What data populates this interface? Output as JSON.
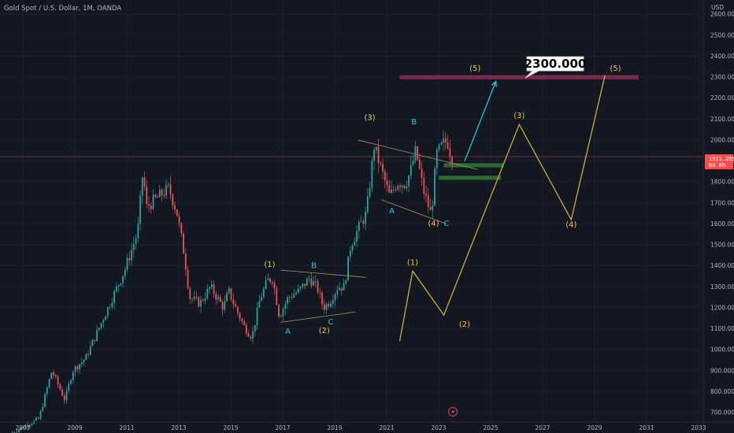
{
  "header": {
    "title": "Gold Spot / U.S. Dollar, 1M, OANDA",
    "currency": "USD"
  },
  "current_price": {
    "value": "1921.265",
    "countdown": "6d 8h",
    "price": 1921.265,
    "color": "#ef5350"
  },
  "callout": {
    "text": "2300.000"
  },
  "colors": {
    "background": "#131722",
    "up": "#26a69a",
    "down": "#ef5350",
    "wave_projection": "#c9b02e",
    "wave_label_yellow": "#f5c542",
    "wave_label_cyan": "#26c6da",
    "target_zone": "#8e2c54",
    "support_zone": "#2e6b34",
    "arrow": "#26c6da"
  },
  "chart_data": {
    "type": "candlestick",
    "symbol": "XAUUSD",
    "interval": "1M",
    "xlim": [
      2007.0,
      2033.0
    ],
    "ylim": [
      680,
      2680
    ],
    "y_ticks": [
      "700.000",
      "800.000",
      "900.000",
      "1000.000",
      "1100.000",
      "1200.000",
      "1300.000",
      "1400.000",
      "1500.000",
      "1600.000",
      "1700.000",
      "1800.000",
      "1900.000",
      "2000.000",
      "2100.000",
      "2200.000",
      "2300.000",
      "2400.000",
      "2500.000",
      "2600.000"
    ],
    "y_tick_values": [
      700,
      800,
      900,
      1000,
      1100,
      1200,
      1300,
      1400,
      1500,
      1600,
      1700,
      1800,
      1900,
      2000,
      2100,
      2200,
      2300,
      2400,
      2500,
      2600
    ],
    "x_ticks": [
      "2007",
      "2009",
      "2011",
      "2013",
      "2015",
      "2017",
      "2019",
      "2021",
      "2023",
      "2025",
      "2027",
      "2029",
      "2031",
      "2033"
    ],
    "x_tick_values": [
      2007,
      2009,
      2011,
      2013,
      2015,
      2017,
      2019,
      2021,
      2023,
      2025,
      2027,
      2029,
      2031,
      2033
    ],
    "price_path": [
      [
        2006.6,
        600
      ],
      [
        2007.7,
        670
      ],
      [
        2008.2,
        900
      ],
      [
        2008.7,
        760
      ],
      [
        2009.0,
        900
      ],
      [
        2009.5,
        960
      ],
      [
        2010.0,
        1100
      ],
      [
        2010.5,
        1240
      ],
      [
        2011.0,
        1380
      ],
      [
        2011.5,
        1560
      ],
      [
        2011.7,
        1850
      ],
      [
        2011.85,
        1680
      ],
      [
        2012.2,
        1720
      ],
      [
        2012.7,
        1770
      ],
      [
        2013.0,
        1660
      ],
      [
        2013.3,
        1450
      ],
      [
        2013.5,
        1250
      ],
      [
        2013.9,
        1220
      ],
      [
        2014.3,
        1300
      ],
      [
        2014.8,
        1200
      ],
      [
        2015.0,
        1280
      ],
      [
        2015.3,
        1190
      ],
      [
        2015.6,
        1110
      ],
      [
        2015.9,
        1060
      ],
      [
        2016.2,
        1240
      ],
      [
        2016.5,
        1330
      ],
      [
        2016.7,
        1340
      ],
      [
        2016.95,
        1160
      ],
      [
        2017.3,
        1250
      ],
      [
        2017.7,
        1280
      ],
      [
        2018.1,
        1340
      ],
      [
        2018.4,
        1300
      ],
      [
        2018.65,
        1200
      ],
      [
        2018.9,
        1230
      ],
      [
        2019.2,
        1300
      ],
      [
        2019.45,
        1300
      ],
      [
        2019.7,
        1500
      ],
      [
        2020.0,
        1580
      ],
      [
        2020.3,
        1650
      ],
      [
        2020.6,
        1970
      ],
      [
        2020.9,
        1850
      ],
      [
        2021.2,
        1730
      ],
      [
        2021.5,
        1800
      ],
      [
        2021.8,
        1790
      ],
      [
        2022.0,
        1850
      ],
      [
        2022.2,
        1950
      ],
      [
        2022.5,
        1760
      ],
      [
        2022.8,
        1640
      ],
      [
        2023.0,
        1930
      ],
      [
        2023.3,
        1990
      ],
      [
        2023.45,
        1990
      ],
      [
        2023.55,
        1921
      ]
    ],
    "target_zone": {
      "from": 2290,
      "to": 2310,
      "x_from": 2021.5,
      "x_to": 2030.7
    },
    "support_zones": [
      {
        "from": 1870,
        "to": 1890,
        "x_from": 2023.2,
        "x_to": 2025.5
      },
      {
        "from": 1810,
        "to": 1830,
        "x_from": 2023.0,
        "x_to": 2025.4
      }
    ],
    "channel_lines": [
      {
        "x1": 2016.9,
        "y1": 1380,
        "x2": 2020.2,
        "y2": 1345
      },
      {
        "x1": 2016.9,
        "y1": 1130,
        "x2": 2019.8,
        "y2": 1180
      },
      {
        "x1": 2019.9,
        "y1": 2000,
        "x2": 2024.5,
        "y2": 1860
      },
      {
        "x1": 2020.8,
        "y1": 1715,
        "x2": 2023.3,
        "y2": 1600
      }
    ],
    "projection_path": [
      [
        2021.5,
        1040
      ],
      [
        2022.0,
        1375
      ],
      [
        2023.2,
        1165
      ],
      [
        2026.1,
        2075
      ],
      [
        2028.1,
        1620
      ],
      [
        2029.4,
        2310
      ]
    ],
    "arrow": {
      "x1": 2024.0,
      "y1": 1900,
      "x2": 2025.2,
      "y2": 2280
    },
    "wave_labels": [
      {
        "text": "(1)",
        "x": 2016.5,
        "y": 1395,
        "color": "yellow"
      },
      {
        "text": "B",
        "x": 2018.2,
        "y": 1390,
        "color": "cyan"
      },
      {
        "text": "A",
        "x": 2017.2,
        "y": 1075,
        "color": "cyan"
      },
      {
        "text": "C",
        "x": 2018.85,
        "y": 1120,
        "color": "cyan"
      },
      {
        "text": "(2)",
        "x": 2018.6,
        "y": 1080,
        "color": "yellow"
      },
      {
        "text": "(3)",
        "x": 2020.35,
        "y": 2095,
        "color": "yellow"
      },
      {
        "text": "B",
        "x": 2022.05,
        "y": 2075,
        "color": "cyan"
      },
      {
        "text": "A",
        "x": 2021.2,
        "y": 1650,
        "color": "cyan"
      },
      {
        "text": "(4)",
        "x": 2022.8,
        "y": 1590,
        "color": "yellow"
      },
      {
        "text": "C",
        "x": 2023.3,
        "y": 1590,
        "color": "cyan"
      },
      {
        "text": "(5)",
        "x": 2024.4,
        "y": 2330,
        "color": "yellow"
      },
      {
        "text": "(1)",
        "x": 2022.0,
        "y": 1405,
        "color": "yellow"
      },
      {
        "text": "(2)",
        "x": 2024.0,
        "y": 1110,
        "color": "yellow"
      },
      {
        "text": "(3)",
        "x": 2026.1,
        "y": 2105,
        "color": "yellow"
      },
      {
        "text": "(4)",
        "x": 2028.1,
        "y": 1585,
        "color": "yellow"
      },
      {
        "text": "(5)",
        "x": 2029.8,
        "y": 2330,
        "color": "yellow"
      }
    ]
  }
}
